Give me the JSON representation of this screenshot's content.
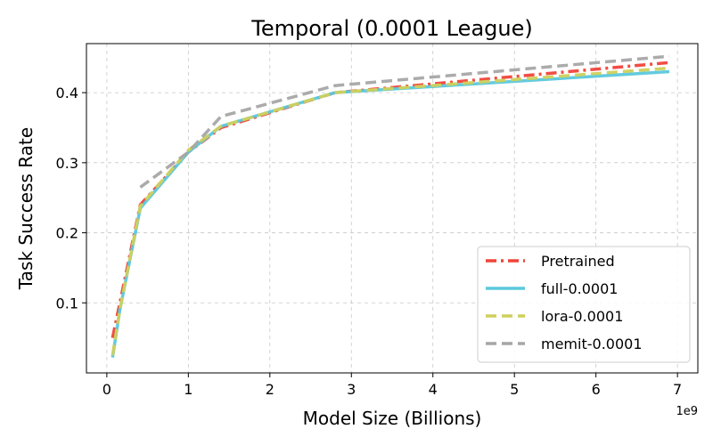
{
  "chart_data": {
    "type": "line",
    "title": "Temporal (0.0001 League)",
    "xlabel": "Model Size (Billions)",
    "ylabel": "Task Success Rate",
    "x_offset_label": "1e9",
    "xlim": [
      -0.25,
      7.25
    ],
    "ylim": [
      0.0,
      0.47
    ],
    "x_ticks": [
      0,
      1,
      2,
      3,
      4,
      5,
      6,
      7
    ],
    "y_ticks": [
      0.1,
      0.2,
      0.3,
      0.4
    ],
    "y_tick_labels": [
      "0.1",
      "0.2",
      "0.3",
      "0.4"
    ],
    "grid": true,
    "legend_position": "lower-right",
    "series": [
      {
        "name": "Pretrained",
        "color": "#f0433a",
        "dash": "dashdot",
        "x": [
          0.07,
          0.16,
          0.41,
          1.0,
          1.4,
          2.8,
          6.9
        ],
        "y": [
          0.05,
          0.1,
          0.24,
          0.315,
          0.35,
          0.4,
          0.443
        ]
      },
      {
        "name": "full-0.0001",
        "color": "#5bc8dc",
        "dash": "solid",
        "x": [
          0.07,
          0.16,
          0.41,
          1.0,
          1.4,
          2.8,
          6.9
        ],
        "y": [
          0.022,
          0.09,
          0.235,
          0.315,
          0.352,
          0.4,
          0.43
        ]
      },
      {
        "name": "lora-0.0001",
        "color": "#cfd05c",
        "dash": "dashed",
        "x": [
          0.07,
          0.16,
          0.41,
          1.0,
          1.4,
          2.8,
          6.9
        ],
        "y": [
          0.025,
          0.09,
          0.238,
          0.318,
          0.352,
          0.4,
          0.435
        ]
      },
      {
        "name": "memit-0.0001",
        "color": "#a6a6a6",
        "dash": "dashed",
        "x": [
          0.41,
          1.0,
          1.4,
          2.8,
          6.9
        ],
        "y": [
          0.265,
          0.315,
          0.366,
          0.41,
          0.452
        ]
      }
    ]
  }
}
